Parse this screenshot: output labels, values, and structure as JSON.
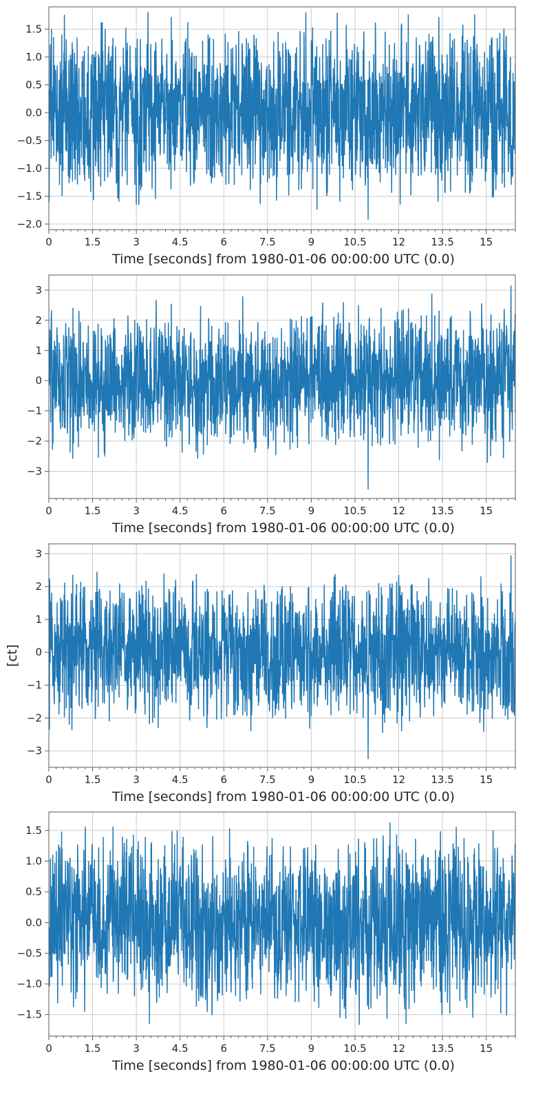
{
  "colors": {
    "series": "#1f77b4",
    "grid": "#cccccc",
    "axes": "#5a5a5a",
    "background": "#ffffff"
  },
  "chart_data": [
    {
      "type": "line",
      "xlabel": "Time [seconds] from 1980-01-06 00:00:00 UTC (0.0)",
      "ylabel": "",
      "xlim": [
        0,
        16
      ],
      "ylim": [
        -2.1,
        1.9
      ],
      "xticks": [
        "0",
        "1.5",
        "3",
        "4.5",
        "6",
        "7.5",
        "9",
        "10.5",
        "12",
        "13.5",
        "15"
      ],
      "xtick_values": [
        0,
        1.5,
        3,
        4.5,
        6,
        7.5,
        9,
        10.5,
        12,
        13.5,
        15
      ],
      "yticks": [
        "1.5",
        "1.0",
        "0.5",
        "0.0",
        "−0.5",
        "−1.0",
        "−1.5",
        "−2.0"
      ],
      "ytick_values": [
        1.5,
        1.0,
        0.5,
        0.0,
        -0.5,
        -1.0,
        -1.5,
        -2.0
      ],
      "grid": true,
      "series": [
        {
          "noise_amplitude": 0.68,
          "envelope": [
            1.0,
            1.35
          ],
          "peaks_up": [
            [
              4.2,
              1.72
            ],
            [
              11.2,
              1.62
            ],
            [
              12.1,
              1.6
            ],
            [
              6.05,
              1.42
            ],
            [
              14.2,
              1.58
            ]
          ],
          "peaks_down": [
            [
              10.95,
              -1.92
            ],
            [
              12.05,
              -1.65
            ],
            [
              13.35,
              -1.6
            ],
            [
              2.4,
              -1.6
            ],
            [
              3.0,
              -1.65
            ],
            [
              15.25,
              -1.52
            ]
          ]
        }
      ]
    },
    {
      "type": "line",
      "xlabel": "Time [seconds] from 1980-01-06 00:00:00 UTC (0.0)",
      "ylabel": "",
      "xlim": [
        0,
        16
      ],
      "ylim": [
        -3.9,
        3.5
      ],
      "xticks": [
        "0",
        "1.5",
        "3",
        "4.5",
        "6",
        "7.5",
        "9",
        "10.5",
        "12",
        "13.5",
        "15"
      ],
      "xtick_values": [
        0,
        1.5,
        3,
        4.5,
        6,
        7.5,
        9,
        10.5,
        12,
        13.5,
        15
      ],
      "yticks": [
        "3",
        "2",
        "1",
        "0",
        "−1",
        "−2",
        "−3"
      ],
      "ytick_values": [
        3,
        2,
        1,
        0,
        -1,
        -2,
        -3
      ],
      "grid": true,
      "series": [
        {
          "noise_amplitude": 1.0,
          "envelope": [
            1.4,
            2.2
          ],
          "peaks_up": [
            [
              15.85,
              3.15
            ],
            [
              10.1,
              2.6
            ],
            [
              4.2,
              2.55
            ]
          ],
          "peaks_down": [
            [
              10.95,
              -3.6
            ],
            [
              15.15,
              -2.5
            ],
            [
              5.3,
              -2.45
            ],
            [
              1.9,
              -2.4
            ]
          ]
        }
      ]
    },
    {
      "type": "line",
      "xlabel": "Time [seconds] from 1980-01-06 00:00:00 UTC (0.0)",
      "ylabel": "[ct]",
      "xlim": [
        0,
        16
      ],
      "ylim": [
        -3.5,
        3.3
      ],
      "xticks": [
        "0",
        "1.5",
        "3",
        "4.5",
        "6",
        "7.5",
        "9",
        "10.5",
        "12",
        "13.5",
        "15"
      ],
      "xtick_values": [
        0,
        1.5,
        3,
        4.5,
        6,
        7.5,
        9,
        10.5,
        12,
        13.5,
        15
      ],
      "yticks": [
        "3",
        "2",
        "1",
        "0",
        "−1",
        "−2",
        "−3"
      ],
      "ytick_values": [
        3,
        2,
        1,
        0,
        -1,
        -2,
        -3
      ],
      "grid": true,
      "series": [
        {
          "noise_amplitude": 0.95,
          "envelope": [
            1.4,
            2.1
          ],
          "peaks_up": [
            [
              15.85,
              2.95
            ],
            [
              1.65,
              2.45
            ],
            [
              12.0,
              2.35
            ]
          ],
          "peaks_down": [
            [
              10.95,
              -3.25
            ],
            [
              3.75,
              -2.3
            ],
            [
              12.1,
              -2.4
            ],
            [
              0.7,
              -2.2
            ]
          ]
        }
      ]
    },
    {
      "type": "line",
      "xlabel": "Time [seconds] from 1980-01-06 00:00:00 UTC (0.0)",
      "ylabel": "",
      "xlim": [
        0,
        16
      ],
      "ylim": [
        -1.85,
        1.8
      ],
      "xticks": [
        "0",
        "1.5",
        "3",
        "4.5",
        "6",
        "7.5",
        "9",
        "10.5",
        "12",
        "13.5",
        "15"
      ],
      "xtick_values": [
        0,
        1.5,
        3,
        4.5,
        6,
        7.5,
        9,
        10.5,
        12,
        13.5,
        15
      ],
      "yticks": [
        "1.5",
        "1.0",
        "0.5",
        "0.0",
        "−0.5",
        "−1.0",
        "−1.5"
      ],
      "ytick_values": [
        1.5,
        1.0,
        0.5,
        0.0,
        -0.5,
        -1.0,
        -1.5
      ],
      "grid": true,
      "series": [
        {
          "noise_amplitude": 0.62,
          "envelope": [
            1.0,
            1.3
          ],
          "peaks_up": [
            [
              11.7,
              1.63
            ],
            [
              1.25,
              1.56
            ],
            [
              2.2,
              1.56
            ],
            [
              4.4,
              1.5
            ]
          ],
          "peaks_down": [
            [
              12.25,
              -1.65
            ],
            [
              11.6,
              -1.57
            ],
            [
              13.75,
              -1.48
            ],
            [
              15.5,
              -1.48
            ],
            [
              5.6,
              -1.48
            ]
          ]
        }
      ]
    }
  ]
}
